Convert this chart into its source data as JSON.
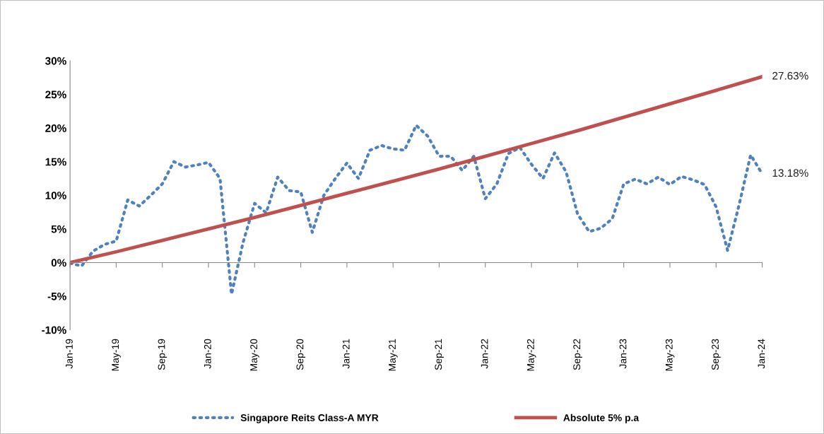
{
  "chart_data": {
    "type": "line",
    "series": [
      {
        "name": "Singapore Reits Class-A MYR",
        "color": "#4f81bd",
        "line_style": "dotted",
        "x": [
          "2019-01",
          "2019-02",
          "2019-03",
          "2019-04",
          "2019-05",
          "2019-06",
          "2019-07",
          "2019-08",
          "2019-09",
          "2019-10",
          "2019-11",
          "2019-12",
          "2020-01",
          "2020-02",
          "2020-03",
          "2020-04",
          "2020-05",
          "2020-06",
          "2020-07",
          "2020-08",
          "2020-09",
          "2020-10",
          "2020-11",
          "2020-12",
          "2021-01",
          "2021-02",
          "2021-03",
          "2021-04",
          "2021-05",
          "2021-06",
          "2021-07",
          "2021-08",
          "2021-09",
          "2021-10",
          "2021-11",
          "2021-12",
          "2022-01",
          "2022-02",
          "2022-03",
          "2022-04",
          "2022-05",
          "2022-06",
          "2022-07",
          "2022-08",
          "2022-09",
          "2022-10",
          "2022-11",
          "2022-12",
          "2023-01",
          "2023-02",
          "2023-03",
          "2023-04",
          "2023-05",
          "2023-06",
          "2023-07",
          "2023-08",
          "2023-09",
          "2023-10",
          "2023-11",
          "2023-12",
          "2024-01"
        ],
        "values": [
          -0.1,
          -0.5,
          1.7,
          2.7,
          3.2,
          9.3,
          8.4,
          10.0,
          11.7,
          15.0,
          14.2,
          14.5,
          14.9,
          12.5,
          -4.7,
          3.0,
          8.8,
          7.4,
          12.7,
          10.7,
          10.5,
          4.5,
          10.0,
          12.5,
          14.8,
          12.5,
          16.7,
          17.4,
          16.9,
          16.7,
          20.4,
          18.8,
          15.8,
          15.8,
          13.7,
          15.8,
          9.5,
          11.7,
          16.2,
          17.1,
          14.6,
          12.5,
          16.3,
          13.5,
          7.2,
          4.6,
          5.1,
          6.5,
          11.7,
          12.4,
          11.7,
          12.7,
          11.6,
          12.8,
          12.3,
          11.6,
          8.3,
          1.8,
          8.6,
          16.0,
          13.18
        ],
        "value_labels": [
          null,
          null,
          null,
          null,
          null,
          null,
          null,
          null,
          null,
          null,
          null,
          null,
          null,
          null,
          null,
          null,
          null,
          null,
          null,
          null,
          null,
          null,
          null,
          null,
          null,
          null,
          null,
          null,
          null,
          null,
          null,
          null,
          null,
          null,
          null,
          null,
          null,
          null,
          null,
          null,
          null,
          null,
          null,
          null,
          null,
          null,
          null,
          null,
          null,
          null,
          null,
          null,
          null,
          null,
          null,
          null,
          null,
          null,
          null,
          null,
          "13.18%"
        ]
      },
      {
        "name": "Absolute 5% p.a",
        "color": "#c0504d",
        "line_style": "solid",
        "x": [
          "2019-01",
          "2019-05",
          "2019-09",
          "2020-01",
          "2020-05",
          "2020-09",
          "2021-01",
          "2021-05",
          "2021-09",
          "2022-01",
          "2022-05",
          "2022-09",
          "2023-01",
          "2023-05",
          "2023-09",
          "2024-01"
        ],
        "values": [
          0,
          1.6,
          3.3,
          5.0,
          6.7,
          8.5,
          10.3,
          12.1,
          13.9,
          15.8,
          17.7,
          19.6,
          21.6,
          23.6,
          25.6,
          27.63
        ],
        "value_labels": [
          null,
          null,
          null,
          null,
          null,
          null,
          null,
          null,
          null,
          null,
          null,
          null,
          null,
          null,
          null,
          "27.63%"
        ]
      }
    ],
    "xlim": [
      "2019-01",
      "2024-01"
    ],
    "xticks": [
      {
        "value": "2019-01",
        "label": "Jan-19"
      },
      {
        "value": "2019-05",
        "label": "May-19"
      },
      {
        "value": "2019-09",
        "label": "Sep-19"
      },
      {
        "value": "2020-01",
        "label": "Jan-20"
      },
      {
        "value": "2020-05",
        "label": "May-20"
      },
      {
        "value": "2020-09",
        "label": "Sep-20"
      },
      {
        "value": "2021-01",
        "label": "Jan-21"
      },
      {
        "value": "2021-05",
        "label": "May-21"
      },
      {
        "value": "2021-09",
        "label": "Sep-21"
      },
      {
        "value": "2022-01",
        "label": "Jan-22"
      },
      {
        "value": "2022-05",
        "label": "May-22"
      },
      {
        "value": "2022-09",
        "label": "Sep-22"
      },
      {
        "value": "2023-01",
        "label": "Jan-23"
      },
      {
        "value": "2023-05",
        "label": "May-23"
      },
      {
        "value": "2023-09",
        "label": "Sep-23"
      },
      {
        "value": "2024-01",
        "label": "Jan-24"
      }
    ],
    "ylim": [
      -10,
      30
    ],
    "yticks": [
      {
        "value": -10,
        "label": "-10%"
      },
      {
        "value": -5,
        "label": "-5%"
      },
      {
        "value": 0,
        "label": "0%"
      },
      {
        "value": 5,
        "label": "5%"
      },
      {
        "value": 10,
        "label": "10%"
      },
      {
        "value": 15,
        "label": "15%"
      },
      {
        "value": 20,
        "label": "20%"
      },
      {
        "value": 25,
        "label": "25%"
      },
      {
        "value": 30,
        "label": "30%"
      }
    ],
    "legend": "bottom",
    "marker": "none"
  }
}
